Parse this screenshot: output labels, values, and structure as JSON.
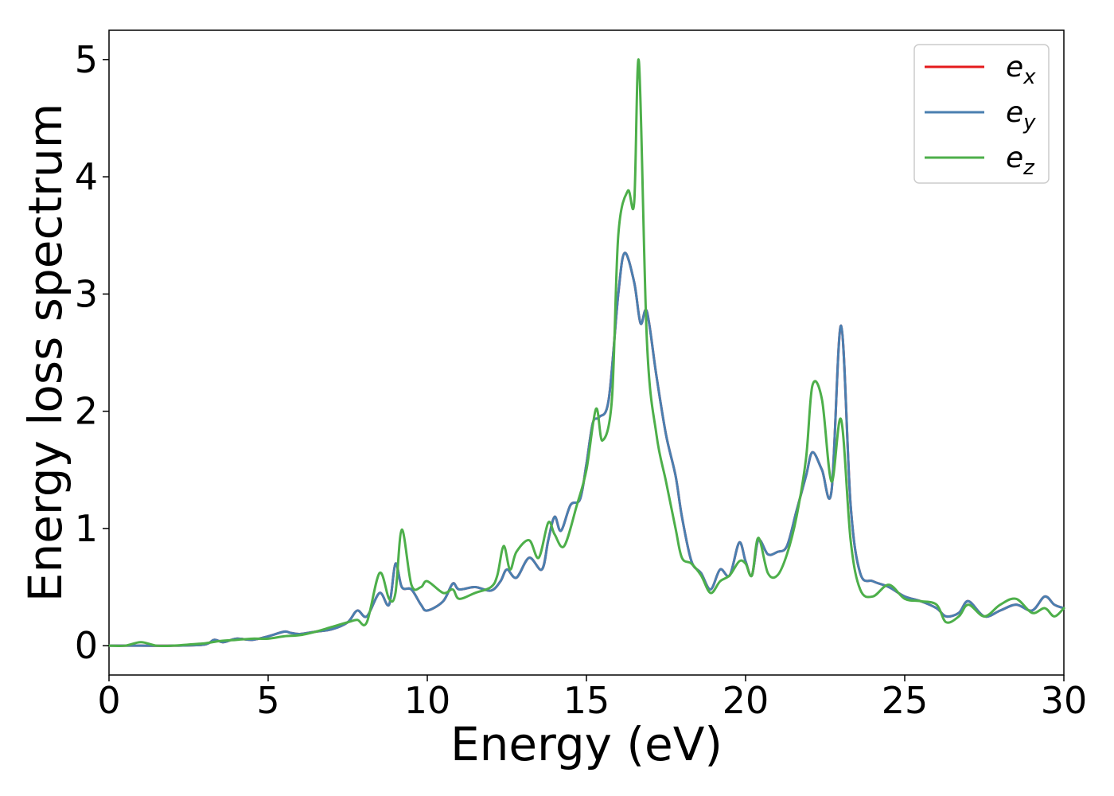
{
  "chart_data": {
    "type": "line",
    "title": "",
    "xlabel": "Energy (eV)",
    "ylabel": "Energy loss spectrum",
    "xlim": [
      0,
      30
    ],
    "ylim": [
      -0.25,
      5.25
    ],
    "xticks": [
      0,
      5,
      10,
      15,
      20,
      25,
      30
    ],
    "xtick_labels": [
      "0",
      "5",
      "10",
      "15",
      "20",
      "25",
      "30"
    ],
    "yticks": [
      0,
      1,
      2,
      3,
      4,
      5
    ],
    "ytick_labels": [
      "0",
      "1",
      "2",
      "3",
      "4",
      "5"
    ],
    "grid": false,
    "legend_position": "top-right",
    "series": [
      {
        "name": "e",
        "name_sub": "x",
        "color": "#e41a1c",
        "x": [
          0,
          1,
          2,
          3,
          3.3,
          3.6,
          4,
          4.5,
          5,
          5.5,
          5.7,
          6,
          6.5,
          7,
          7.5,
          7.8,
          8.1,
          8.5,
          8.8,
          9,
          9.2,
          9.5,
          9.8,
          10,
          10.5,
          10.8,
          11,
          11.5,
          12,
          12.3,
          12.5,
          12.8,
          13.2,
          13.6,
          13.8,
          14,
          14.2,
          14.5,
          14.8,
          15,
          15.2,
          15.4,
          15.7,
          16,
          16.2,
          16.5,
          16.7,
          16.9,
          17.2,
          17.5,
          17.8,
          18,
          18.3,
          18.6,
          18.9,
          19.2,
          19.5,
          19.8,
          20,
          20.2,
          20.4,
          20.7,
          21,
          21.3,
          21.6,
          21.9,
          22.1,
          22.4,
          22.7,
          23,
          23.3,
          23.6,
          24,
          24.5,
          25,
          25.5,
          26,
          26.3,
          26.7,
          27,
          27.5,
          28,
          28.5,
          29,
          29.4,
          29.7,
          30
        ],
        "y": [
          0,
          0,
          0,
          0.01,
          0.05,
          0.03,
          0.06,
          0.05,
          0.08,
          0.12,
          0.11,
          0.1,
          0.12,
          0.14,
          0.2,
          0.3,
          0.25,
          0.45,
          0.35,
          0.7,
          0.5,
          0.48,
          0.35,
          0.3,
          0.38,
          0.53,
          0.48,
          0.5,
          0.47,
          0.55,
          0.65,
          0.58,
          0.75,
          0.65,
          0.9,
          1.1,
          0.98,
          1.2,
          1.25,
          1.55,
          1.9,
          1.95,
          2.1,
          3.0,
          3.35,
          3.1,
          2.75,
          2.85,
          2.3,
          1.8,
          1.45,
          1.1,
          0.72,
          0.62,
          0.48,
          0.65,
          0.6,
          0.88,
          0.72,
          0.6,
          0.9,
          0.78,
          0.8,
          0.85,
          1.15,
          1.45,
          1.65,
          1.5,
          1.32,
          2.73,
          1.2,
          0.62,
          0.55,
          0.5,
          0.42,
          0.38,
          0.32,
          0.25,
          0.28,
          0.38,
          0.25,
          0.3,
          0.35,
          0.3,
          0.42,
          0.35,
          0.32
        ]
      },
      {
        "name": "e",
        "name_sub": "y",
        "color": "#4a7fb0",
        "x": [
          0,
          1,
          2,
          3,
          3.3,
          3.6,
          4,
          4.5,
          5,
          5.5,
          5.7,
          6,
          6.5,
          7,
          7.5,
          7.8,
          8.1,
          8.5,
          8.8,
          9,
          9.2,
          9.5,
          9.8,
          10,
          10.5,
          10.8,
          11,
          11.5,
          12,
          12.3,
          12.5,
          12.8,
          13.2,
          13.6,
          13.8,
          14,
          14.2,
          14.5,
          14.8,
          15,
          15.2,
          15.4,
          15.7,
          16,
          16.2,
          16.5,
          16.7,
          16.9,
          17.2,
          17.5,
          17.8,
          18,
          18.3,
          18.6,
          18.9,
          19.2,
          19.5,
          19.8,
          20,
          20.2,
          20.4,
          20.7,
          21,
          21.3,
          21.6,
          21.9,
          22.1,
          22.4,
          22.7,
          23,
          23.3,
          23.6,
          24,
          24.5,
          25,
          25.5,
          26,
          26.3,
          26.7,
          27,
          27.5,
          28,
          28.5,
          29,
          29.4,
          29.7,
          30
        ],
        "y": [
          0,
          0,
          0,
          0.01,
          0.05,
          0.03,
          0.06,
          0.05,
          0.08,
          0.12,
          0.11,
          0.1,
          0.12,
          0.14,
          0.2,
          0.3,
          0.25,
          0.45,
          0.35,
          0.7,
          0.5,
          0.48,
          0.35,
          0.3,
          0.38,
          0.53,
          0.48,
          0.5,
          0.47,
          0.55,
          0.65,
          0.58,
          0.75,
          0.65,
          0.9,
          1.1,
          0.98,
          1.2,
          1.25,
          1.55,
          1.9,
          1.95,
          2.1,
          3.0,
          3.35,
          3.1,
          2.75,
          2.85,
          2.3,
          1.8,
          1.45,
          1.1,
          0.72,
          0.62,
          0.48,
          0.65,
          0.6,
          0.88,
          0.72,
          0.6,
          0.9,
          0.78,
          0.8,
          0.85,
          1.15,
          1.45,
          1.65,
          1.5,
          1.32,
          2.73,
          1.2,
          0.62,
          0.55,
          0.5,
          0.42,
          0.38,
          0.32,
          0.25,
          0.28,
          0.38,
          0.25,
          0.3,
          0.35,
          0.3,
          0.42,
          0.35,
          0.32
        ]
      },
      {
        "name": "e",
        "name_sub": "z",
        "color": "#4daf4a",
        "x": [
          0,
          0.5,
          1,
          1.5,
          2,
          2.5,
          3,
          3.5,
          4,
          4.5,
          5,
          5.5,
          6,
          6.5,
          7,
          7.5,
          7.8,
          8.1,
          8.5,
          8.8,
          9,
          9.2,
          9.5,
          9.8,
          10,
          10.5,
          10.8,
          11,
          11.5,
          12,
          12.2,
          12.4,
          12.6,
          12.8,
          13.2,
          13.5,
          13.8,
          14,
          14.3,
          14.7,
          15,
          15.3,
          15.5,
          15.8,
          16,
          16.3,
          16.5,
          16.65,
          16.9,
          17.2,
          17.5,
          17.8,
          18,
          18.3,
          18.6,
          18.9,
          19.2,
          19.5,
          19.8,
          20,
          20.2,
          20.4,
          20.7,
          21,
          21.3,
          21.6,
          21.9,
          22.1,
          22.4,
          22.7,
          23,
          23.3,
          23.6,
          24,
          24.5,
          25,
          25.5,
          26,
          26.3,
          26.7,
          27,
          27.5,
          28,
          28.5,
          29,
          29.4,
          29.7,
          30
        ],
        "y": [
          0,
          0,
          0.03,
          0,
          0,
          0.01,
          0.02,
          0.04,
          0.05,
          0.06,
          0.06,
          0.08,
          0.09,
          0.12,
          0.16,
          0.2,
          0.22,
          0.2,
          0.62,
          0.4,
          0.45,
          0.99,
          0.52,
          0.5,
          0.55,
          0.45,
          0.48,
          0.4,
          0.45,
          0.5,
          0.6,
          0.85,
          0.65,
          0.8,
          0.9,
          0.75,
          1.05,
          0.95,
          0.85,
          1.2,
          1.5,
          2.02,
          1.75,
          2.1,
          3.5,
          3.88,
          3.78,
          4.98,
          2.6,
          1.8,
          1.4,
          1.0,
          0.75,
          0.7,
          0.6,
          0.45,
          0.55,
          0.6,
          0.72,
          0.7,
          0.6,
          0.92,
          0.62,
          0.6,
          0.78,
          1.1,
          1.6,
          2.22,
          2.1,
          1.4,
          1.93,
          0.9,
          0.48,
          0.42,
          0.52,
          0.4,
          0.38,
          0.35,
          0.2,
          0.25,
          0.35,
          0.25,
          0.35,
          0.4,
          0.28,
          0.32,
          0.25,
          0.32
        ]
      }
    ]
  }
}
